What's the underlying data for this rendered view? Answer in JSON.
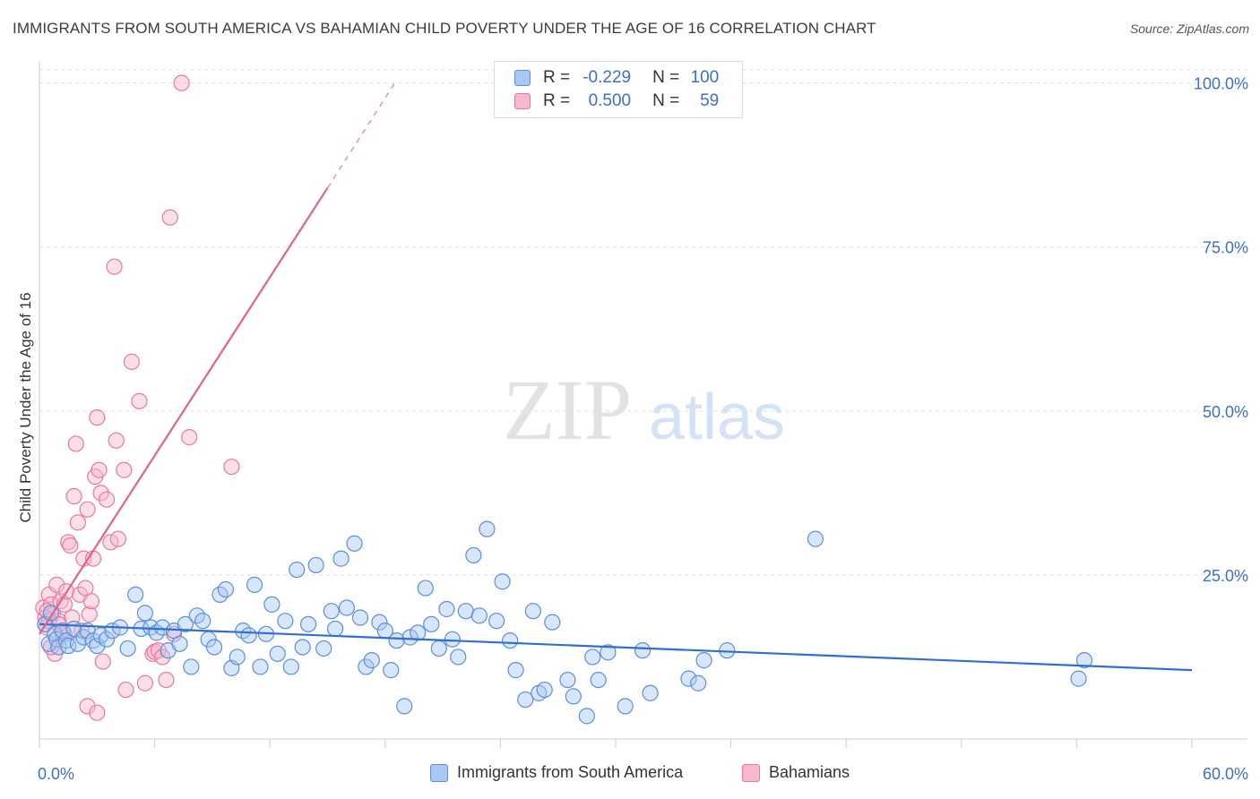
{
  "title": "IMMIGRANTS FROM SOUTH AMERICA VS BAHAMIAN CHILD POVERTY UNDER THE AGE OF 16 CORRELATION CHART",
  "source": "Source: ZipAtlas.com",
  "watermark": {
    "zip": "ZIP",
    "atlas": "atlas"
  },
  "stats": [
    {
      "r_label": "R =",
      "r_value": "-0.229",
      "n_label": "N =",
      "n_value": "100",
      "color": "#7aa6e6"
    },
    {
      "r_label": "R =",
      "r_value": "0.500",
      "n_label": "N =",
      "n_value": "59",
      "color": "#f19ab8"
    }
  ],
  "colors": {
    "blue_fill": "#a9c7f2",
    "blue_stroke": "#5b8fdc",
    "blue_line": "#2f6fce",
    "pink_fill": "#f7b7cc",
    "pink_stroke": "#e8799c",
    "pink_line": "#e2628e",
    "axis_text": "#3d6fc8",
    "grid": "#dddddd"
  },
  "chart_data": {
    "type": "scatter",
    "title": "IMMIGRANTS FROM SOUTH AMERICA VS BAHAMIAN CHILD POVERTY UNDER THE AGE OF 16 CORRELATION CHART",
    "xlabel": "",
    "ylabel": "Child Poverty Under the Age of 16",
    "xlim": [
      0,
      60
    ],
    "ylim": [
      0,
      102
    ],
    "x_ticks": [
      "0.0%",
      "60.0%"
    ],
    "y_ticks": [
      {
        "value": 25,
        "label": "25.0%"
      },
      {
        "value": 50,
        "label": "50.0%"
      },
      {
        "value": 75,
        "label": "75.0%"
      },
      {
        "value": 100,
        "label": "100.0%"
      }
    ],
    "grid": true,
    "legend_position": "bottom",
    "series": [
      {
        "name": "Immigrants from South America",
        "color": "#a9c7f2",
        "trend": {
          "x": [
            0,
            60
          ],
          "y": [
            17.5,
            10.5
          ],
          "style": "solid"
        },
        "points": [
          [
            0.3,
            17.5
          ],
          [
            0.5,
            14.5
          ],
          [
            0.6,
            19.2
          ],
          [
            0.8,
            16.0
          ],
          [
            0.9,
            15.2
          ],
          [
            1.0,
            14.0
          ],
          [
            1.2,
            16.5
          ],
          [
            1.4,
            15.0
          ],
          [
            1.5,
            14.2
          ],
          [
            1.8,
            16.8
          ],
          [
            2.0,
            14.5
          ],
          [
            2.3,
            15.5
          ],
          [
            2.5,
            16.5
          ],
          [
            2.8,
            15.0
          ],
          [
            3.0,
            14.2
          ],
          [
            3.2,
            15.8
          ],
          [
            3.5,
            15.2
          ],
          [
            3.8,
            16.5
          ],
          [
            4.2,
            17.0
          ],
          [
            4.6,
            13.8
          ],
          [
            5.0,
            22.0
          ],
          [
            5.3,
            16.8
          ],
          [
            5.5,
            19.2
          ],
          [
            5.8,
            17.0
          ],
          [
            6.1,
            16.2
          ],
          [
            6.4,
            17.0
          ],
          [
            6.7,
            13.5
          ],
          [
            7.0,
            16.5
          ],
          [
            7.3,
            14.5
          ],
          [
            7.6,
            17.5
          ],
          [
            7.9,
            11.0
          ],
          [
            8.2,
            18.8
          ],
          [
            8.5,
            18.0
          ],
          [
            8.8,
            15.2
          ],
          [
            9.1,
            14.0
          ],
          [
            9.4,
            22.0
          ],
          [
            9.7,
            22.8
          ],
          [
            10.0,
            10.8
          ],
          [
            10.3,
            12.5
          ],
          [
            10.6,
            16.5
          ],
          [
            10.9,
            15.8
          ],
          [
            11.2,
            23.5
          ],
          [
            11.5,
            11.0
          ],
          [
            11.8,
            16.0
          ],
          [
            12.1,
            20.5
          ],
          [
            12.4,
            13.0
          ],
          [
            12.8,
            18.0
          ],
          [
            13.1,
            11.0
          ],
          [
            13.4,
            25.8
          ],
          [
            13.7,
            14.0
          ],
          [
            14.0,
            17.5
          ],
          [
            14.4,
            26.5
          ],
          [
            14.8,
            13.8
          ],
          [
            15.2,
            19.5
          ],
          [
            15.4,
            16.8
          ],
          [
            15.7,
            27.5
          ],
          [
            16.0,
            20.0
          ],
          [
            16.4,
            29.8
          ],
          [
            16.7,
            18.5
          ],
          [
            17.0,
            11.0
          ],
          [
            17.3,
            12.0
          ],
          [
            17.7,
            17.8
          ],
          [
            18.0,
            16.5
          ],
          [
            18.3,
            10.5
          ],
          [
            18.6,
            15.0
          ],
          [
            19.0,
            5.0
          ],
          [
            19.3,
            15.5
          ],
          [
            19.7,
            16.2
          ],
          [
            20.1,
            23.0
          ],
          [
            20.4,
            17.5
          ],
          [
            20.8,
            13.8
          ],
          [
            21.2,
            19.8
          ],
          [
            21.5,
            15.2
          ],
          [
            21.8,
            12.5
          ],
          [
            22.2,
            19.5
          ],
          [
            22.6,
            28.0
          ],
          [
            22.9,
            18.8
          ],
          [
            23.3,
            32.0
          ],
          [
            23.8,
            18.0
          ],
          [
            24.1,
            24.0
          ],
          [
            24.5,
            15.0
          ],
          [
            24.8,
            10.5
          ],
          [
            25.3,
            6.0
          ],
          [
            25.7,
            19.5
          ],
          [
            26.0,
            7.0
          ],
          [
            26.3,
            7.5
          ],
          [
            26.7,
            17.8
          ],
          [
            27.5,
            9.0
          ],
          [
            27.8,
            6.5
          ],
          [
            28.5,
            3.5
          ],
          [
            28.8,
            12.5
          ],
          [
            29.1,
            9.0
          ],
          [
            29.6,
            13.2
          ],
          [
            30.5,
            5.0
          ],
          [
            31.4,
            13.5
          ],
          [
            31.8,
            7.0
          ],
          [
            33.8,
            9.2
          ],
          [
            34.3,
            8.5
          ],
          [
            34.6,
            12.0
          ],
          [
            35.8,
            13.5
          ],
          [
            40.4,
            30.5
          ],
          [
            54.1,
            9.2
          ],
          [
            54.4,
            12.0
          ]
        ]
      },
      {
        "name": "Bahamians",
        "color": "#f7b7cc",
        "trend": {
          "x": [
            0,
            15
          ],
          "y": [
            16,
            84
          ],
          "style": "solid",
          "dashed_extension": {
            "x": [
              15,
              18.5
            ],
            "y": [
              84,
              100
            ]
          }
        },
        "points": [
          [
            0.2,
            20.0
          ],
          [
            0.3,
            18.5
          ],
          [
            0.4,
            17.0
          ],
          [
            0.5,
            22.0
          ],
          [
            0.6,
            20.5
          ],
          [
            0.7,
            19.0
          ],
          [
            0.8,
            13.0
          ],
          [
            0.9,
            23.5
          ],
          [
            1.0,
            18.0
          ],
          [
            1.1,
            21.0
          ],
          [
            1.2,
            16.0
          ],
          [
            1.3,
            20.5
          ],
          [
            1.4,
            22.5
          ],
          [
            1.5,
            30.0
          ],
          [
            1.6,
            29.5
          ],
          [
            1.7,
            18.5
          ],
          [
            1.8,
            37.0
          ],
          [
            1.9,
            45.0
          ],
          [
            2.0,
            33.0
          ],
          [
            2.1,
            22.0
          ],
          [
            2.2,
            16.5
          ],
          [
            2.3,
            27.5
          ],
          [
            2.4,
            23.0
          ],
          [
            2.5,
            35.0
          ],
          [
            2.6,
            19.0
          ],
          [
            2.7,
            21.0
          ],
          [
            2.8,
            27.5
          ],
          [
            2.9,
            40.0
          ],
          [
            3.0,
            49.0
          ],
          [
            3.1,
            41.0
          ],
          [
            3.2,
            37.5
          ],
          [
            3.3,
            11.8
          ],
          [
            3.5,
            36.5
          ],
          [
            3.7,
            30.0
          ],
          [
            3.9,
            72.0
          ],
          [
            4.1,
            30.5
          ],
          [
            4.4,
            41.0
          ],
          [
            4.5,
            7.5
          ],
          [
            4.8,
            57.5
          ],
          [
            5.2,
            51.5
          ],
          [
            5.5,
            8.5
          ],
          [
            5.9,
            13.0
          ],
          [
            6.0,
            13.3
          ],
          [
            6.2,
            13.5
          ],
          [
            6.4,
            12.5
          ],
          [
            6.6,
            9.0
          ],
          [
            6.8,
            79.5
          ],
          [
            7.0,
            16.0
          ],
          [
            7.4,
            100.0
          ],
          [
            7.8,
            46.0
          ],
          [
            2.5,
            5.0
          ],
          [
            3.0,
            4.0
          ],
          [
            4.0,
            45.5
          ],
          [
            1.3,
            16.0
          ],
          [
            10.0,
            41.5
          ],
          [
            0.5,
            18.0
          ],
          [
            0.6,
            14.0
          ],
          [
            1.0,
            17.5
          ],
          [
            0.4,
            19.5
          ]
        ]
      }
    ]
  }
}
